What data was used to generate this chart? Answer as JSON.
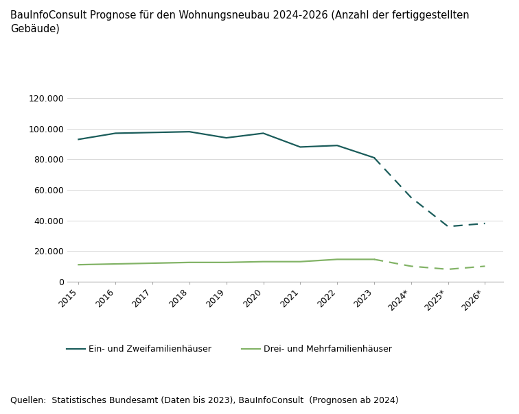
{
  "title_line1": "BauInfoConsult Prognose für den Wohnungsneubau 2024-2026 (Anzahl der fertiggestellten",
  "title_line2": "Gebäude)",
  "source_text": "Quellen:  Statistisches Bundesamt (Daten bis 2023), BauInfoConsult  (Prognosen ab 2024)",
  "x_labels": [
    "2015",
    "2016",
    "2017",
    "2018",
    "2019",
    "2020",
    "2021",
    "2022",
    "2023",
    "2024*",
    "2025*",
    "2026*"
  ],
  "ein_solid": [
    93000,
    97000,
    97500,
    98000,
    94000,
    97000,
    88000,
    89000,
    81000
  ],
  "ein_dashed": [
    81000,
    55000,
    36000,
    38000
  ],
  "drei_solid": [
    11000,
    11500,
    12000,
    12500,
    12500,
    13000,
    13000,
    14500,
    14500
  ],
  "drei_dashed": [
    14500,
    10000,
    8000,
    10000
  ],
  "dark_teal": "#1a5c5a",
  "light_green": "#82b366",
  "ylim": [
    0,
    130000
  ],
  "yticks": [
    0,
    20000,
    40000,
    60000,
    80000,
    100000,
    120000
  ],
  "ytick_labels": [
    "0",
    "20.000",
    "40.000",
    "60.000",
    "80.000",
    "100.000",
    "120.000"
  ],
  "legend_ein": "Ein- und Zweifamilienhäuser",
  "legend_drei": "Drei- und Mehrfamilienhäuser",
  "background_color": "#ffffff",
  "title_fontsize": 10.5,
  "tick_fontsize": 9,
  "source_fontsize": 9
}
